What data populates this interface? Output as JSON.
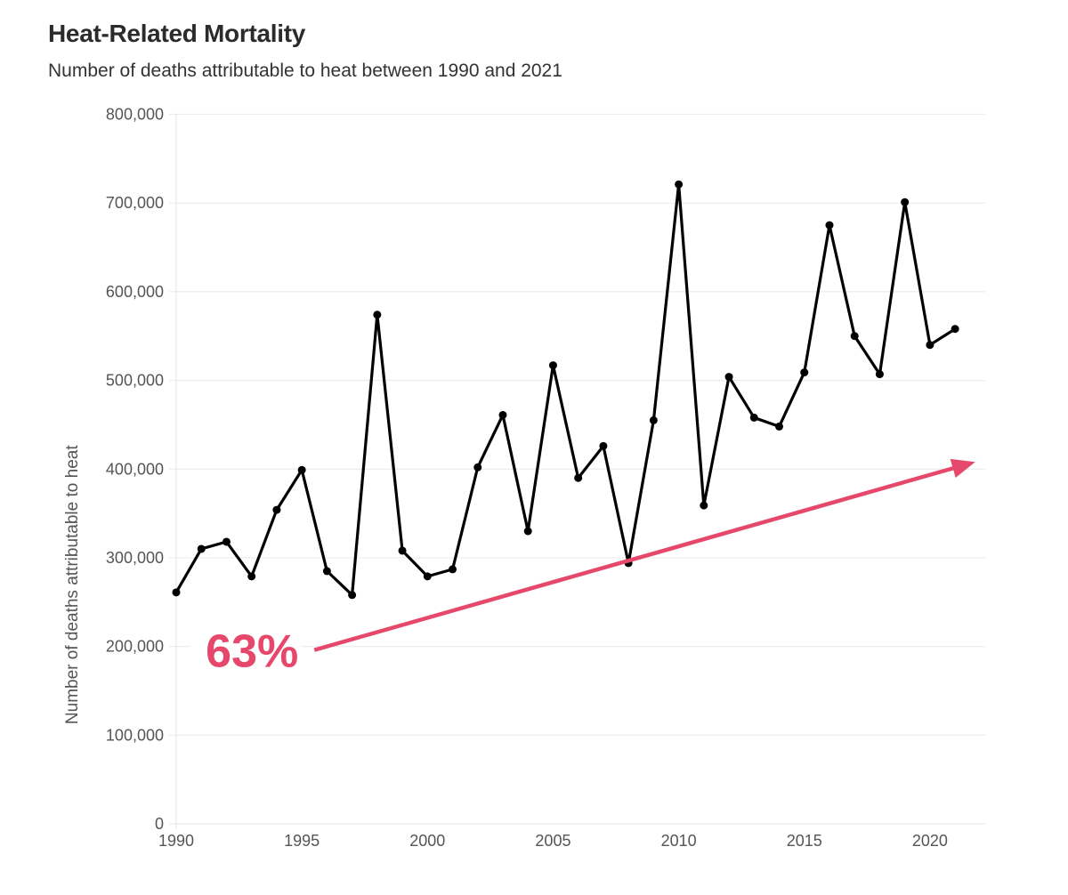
{
  "chart_data": {
    "type": "line",
    "title": "Heat-Related Mortality",
    "subtitle": "Number of deaths attributable to heat between 1990 and 2021",
    "xlabel": "",
    "ylabel": "Number of deaths attributable to heat",
    "x": [
      1990,
      1991,
      1992,
      1993,
      1994,
      1995,
      1996,
      1997,
      1998,
      1999,
      2000,
      2001,
      2002,
      2003,
      2004,
      2005,
      2006,
      2007,
      2008,
      2009,
      2010,
      2011,
      2012,
      2013,
      2014,
      2015,
      2016,
      2017,
      2018,
      2019,
      2020,
      2021
    ],
    "series": [
      {
        "name": "Deaths attributable to heat",
        "color": "#000000",
        "values": [
          261000,
          310000,
          318000,
          279000,
          354000,
          399000,
          285000,
          258000,
          574000,
          308000,
          279000,
          287000,
          402000,
          461000,
          330000,
          517000,
          390000,
          426000,
          294000,
          455000,
          721000,
          359000,
          504000,
          458000,
          448000,
          509000,
          675000,
          550000,
          507000,
          701000,
          540000,
          558000
        ]
      }
    ],
    "xlim": [
      1990,
      2022.2
    ],
    "ylim": [
      0,
      800000
    ],
    "x_ticks": [
      1990,
      1995,
      2000,
      2005,
      2010,
      2015,
      2020
    ],
    "x_tick_labels": [
      "1990",
      "1995",
      "2000",
      "2005",
      "2010",
      "2015",
      "2020"
    ],
    "y_ticks": [
      0,
      100000,
      200000,
      300000,
      400000,
      500000,
      600000,
      700000,
      800000
    ],
    "y_tick_labels": [
      "0",
      "100,000",
      "200,000",
      "300,000",
      "400,000",
      "500,000",
      "600,000",
      "700,000",
      "800,000"
    ],
    "grid": "horizontal",
    "legend": "none",
    "annotations": [
      {
        "type": "arrow",
        "label": "63%",
        "color": "#E5486A",
        "from": {
          "x": 1995.5,
          "y": 196000
        },
        "to": {
          "x": 2021.8,
          "y": 408000
        }
      }
    ]
  }
}
